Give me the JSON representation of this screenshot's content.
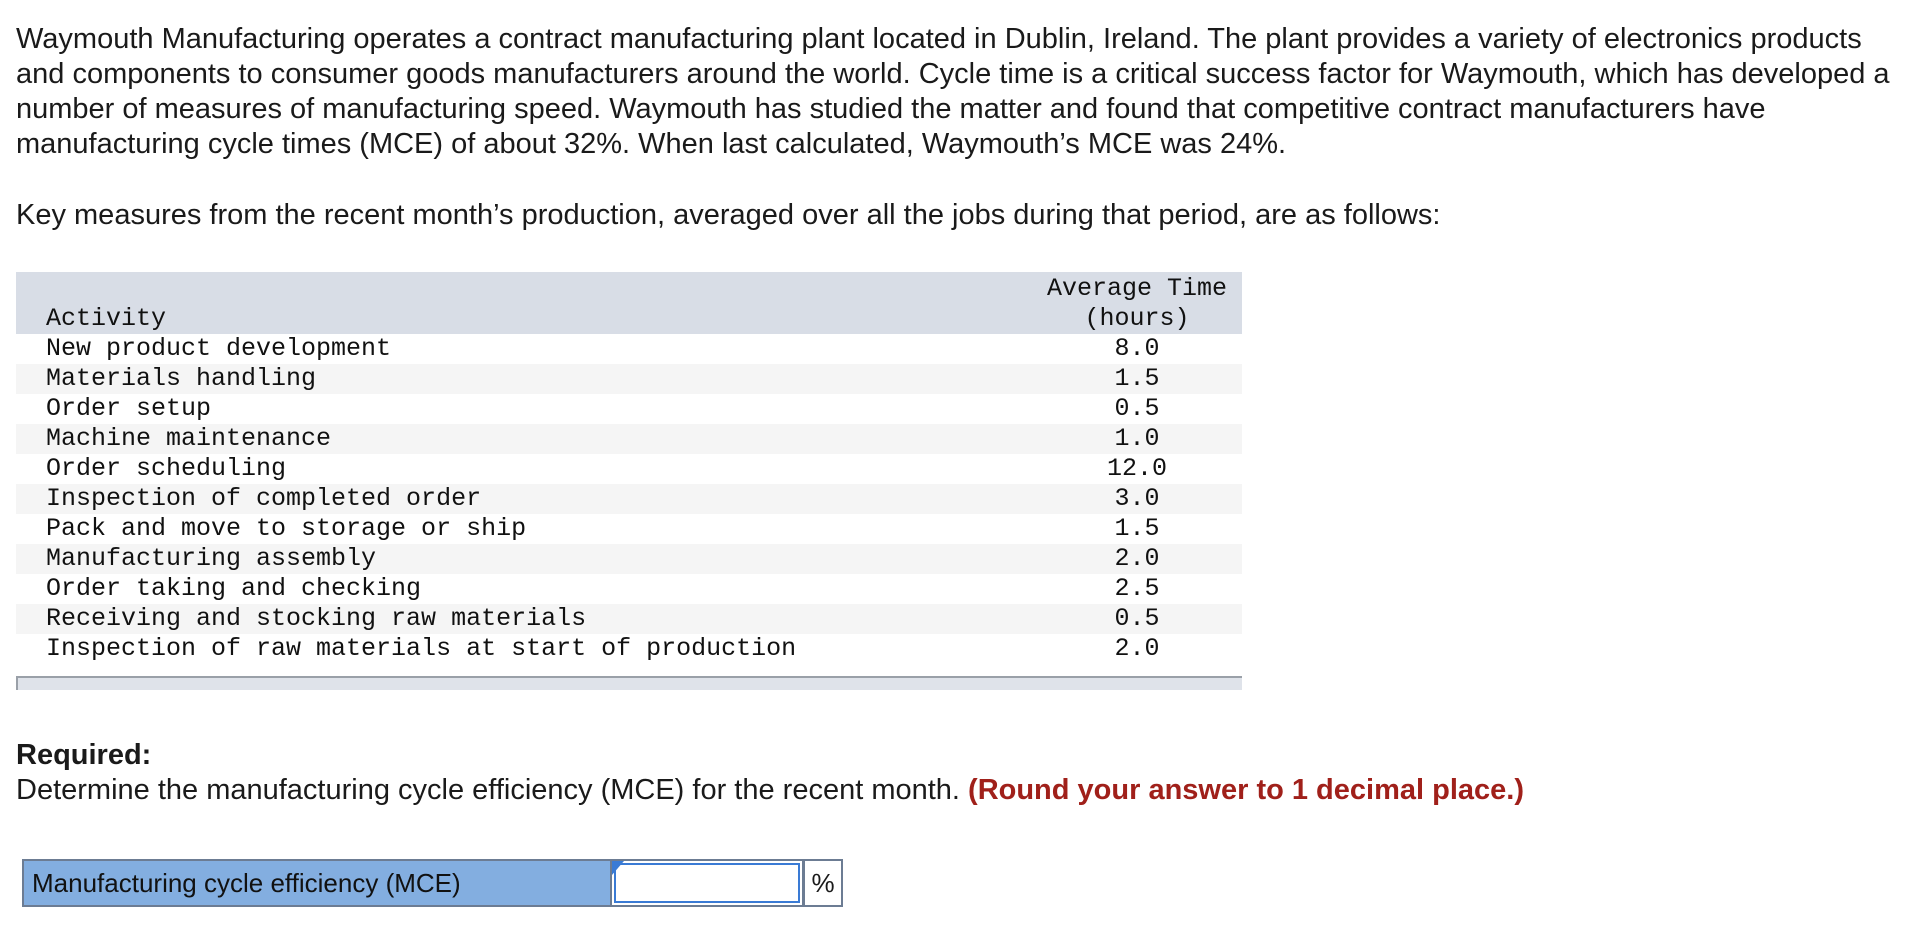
{
  "intro": {
    "paragraph": "Waymouth Manufacturing operates a contract manufacturing plant located in Dublin, Ireland. The plant provides a variety of electronics products and components to consumer goods manufacturers around the world. Cycle time is a critical success factor for Waymouth, which has developed a number of measures of manufacturing speed. Waymouth has studied the matter and found that competitive contract manufacturers have manufacturing cycle times (MCE) of about 32%. When last calculated, Waymouth’s MCE was 24%.",
    "lead": "Key measures from the recent month’s production, averaged over all the jobs during that period, are as follows:"
  },
  "table": {
    "header_activity": "Activity",
    "header_time_line1": "Average Time",
    "header_time_line2": "(hours)",
    "rows": [
      {
        "activity": "New product development",
        "time": "8.0"
      },
      {
        "activity": "Materials handling",
        "time": "1.5"
      },
      {
        "activity": "Order setup",
        "time": "0.5"
      },
      {
        "activity": "Machine maintenance",
        "time": "1.0"
      },
      {
        "activity": "Order scheduling",
        "time": "12.0"
      },
      {
        "activity": "Inspection of completed order",
        "time": "3.0"
      },
      {
        "activity": "Pack and move to storage or ship",
        "time": "1.5"
      },
      {
        "activity": "Manufacturing assembly",
        "time": "2.0"
      },
      {
        "activity": "Order taking and checking",
        "time": "2.5"
      },
      {
        "activity": "Receiving and stocking raw materials",
        "time": "0.5"
      },
      {
        "activity": "Inspection of raw materials at start of production",
        "time": "2.0"
      }
    ]
  },
  "required": {
    "label": "Required:",
    "text": "Determine the manufacturing cycle efficiency (MCE) for the recent month. ",
    "hint": "(Round your answer to 1 decimal place.)"
  },
  "answer": {
    "label": "Manufacturing cycle efficiency (MCE)",
    "value": "",
    "unit": "%"
  },
  "colors": {
    "header_bg": "#d8dde6",
    "answer_label_bg": "#83aee0",
    "hint_red": "#a0201a"
  }
}
